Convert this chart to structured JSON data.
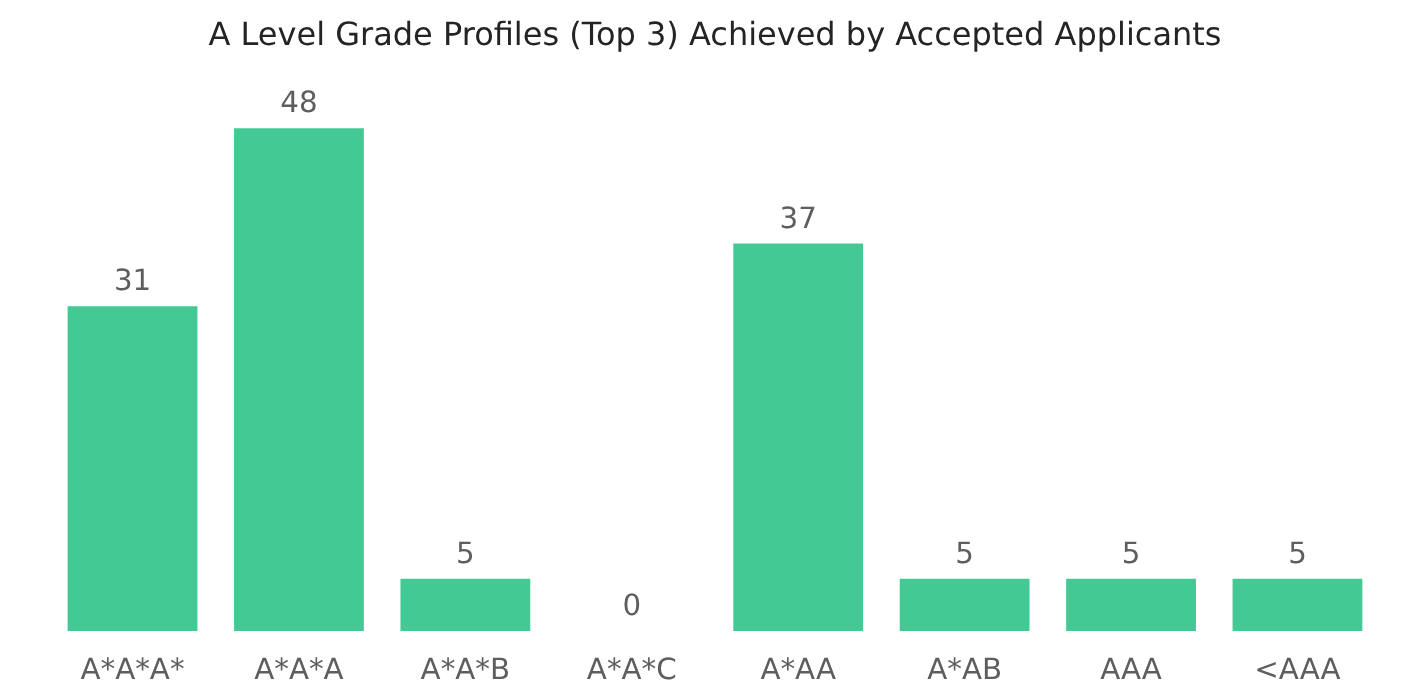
{
  "chart_data": {
    "type": "bar",
    "title": "A Level Grade Profiles (Top 3) Achieved by Accepted Applicants",
    "categories": [
      "A*A*A*",
      "A*A*A",
      "A*A*B",
      "A*A*C",
      "A*AA",
      "A*AB",
      "AAA",
      "<AAA"
    ],
    "values": [
      31,
      48,
      5,
      0,
      37,
      5,
      5,
      5
    ],
    "color": "#43c994",
    "data_labels": true,
    "grid": false
  }
}
